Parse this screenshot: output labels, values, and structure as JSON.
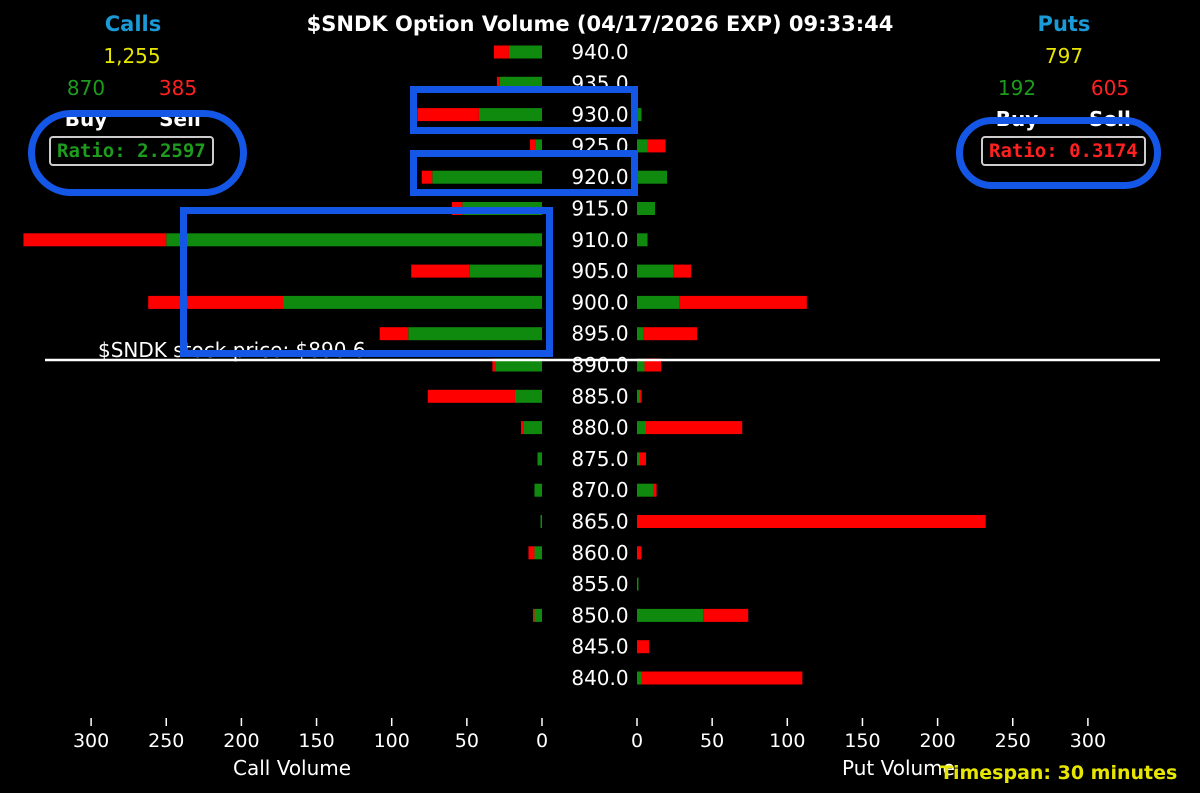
{
  "header": {
    "title": "$SNDK Option Volume (04/17/2026 EXP) 09:33:44",
    "calls": {
      "label": "Calls",
      "total": "1,255",
      "buy": "870",
      "sell": "385",
      "buy_label": "Buy",
      "sell_label": "Sell",
      "ratio": "Ratio: 2.2597"
    },
    "puts": {
      "label": "Puts",
      "total": "797",
      "buy": "192",
      "sell": "605",
      "buy_label": "Buy",
      "sell_label": "Sell",
      "ratio": "Ratio: 0.3174"
    },
    "stock_price": "$SNDK stock price: $890.6",
    "timespan": "Timespan: 30 minutes"
  },
  "colors": {
    "buy": "#0f8a0f",
    "sell": "#ff0000",
    "accent": "#1a9ad6",
    "highlight": "#1457e6"
  },
  "chart_data": {
    "type": "bar",
    "orientation": "horizontal",
    "strikes": [
      "940.0",
      "935.0",
      "930.0",
      "925.0",
      "920.0",
      "915.0",
      "910.0",
      "905.0",
      "900.0",
      "895.0",
      "890.0",
      "885.0",
      "880.0",
      "875.0",
      "870.0",
      "865.0",
      "860.0",
      "855.0",
      "850.0",
      "845.0",
      "840.0"
    ],
    "calls": {
      "xlabel": "Call Volume",
      "ticks": [
        "300",
        "250",
        "200",
        "150",
        "100",
        "50",
        "0"
      ],
      "xlim": [
        0,
        330
      ],
      "buy": [
        22,
        28,
        42,
        4,
        73,
        53,
        250,
        48,
        172,
        89,
        31,
        18,
        12,
        3,
        5,
        1,
        5,
        0,
        5,
        0,
        0
      ],
      "sell": [
        10,
        2,
        41,
        4,
        7,
        7,
        95,
        39,
        90,
        19,
        2,
        58,
        2,
        0,
        0,
        0,
        4,
        0,
        1,
        0,
        0
      ]
    },
    "puts": {
      "xlabel": "Put Volume",
      "ticks": [
        "0",
        "50",
        "100",
        "150",
        "200",
        "250",
        "300"
      ],
      "xlim": [
        0,
        330
      ],
      "buy": [
        0,
        0,
        3,
        7,
        20,
        12,
        7,
        24,
        28,
        4,
        5,
        2,
        6,
        2,
        11,
        0,
        0,
        1,
        44,
        0,
        3
      ],
      "sell": [
        0,
        0,
        0,
        12,
        0,
        0,
        0,
        12,
        85,
        36,
        11,
        1,
        64,
        4,
        2,
        232,
        3,
        0,
        30,
        8,
        107
      ]
    },
    "stock_price": 890.6,
    "highlighted_strikes": [
      "930.0",
      "920.0",
      "910.0",
      "905.0",
      "900.0",
      "895.0"
    ]
  }
}
